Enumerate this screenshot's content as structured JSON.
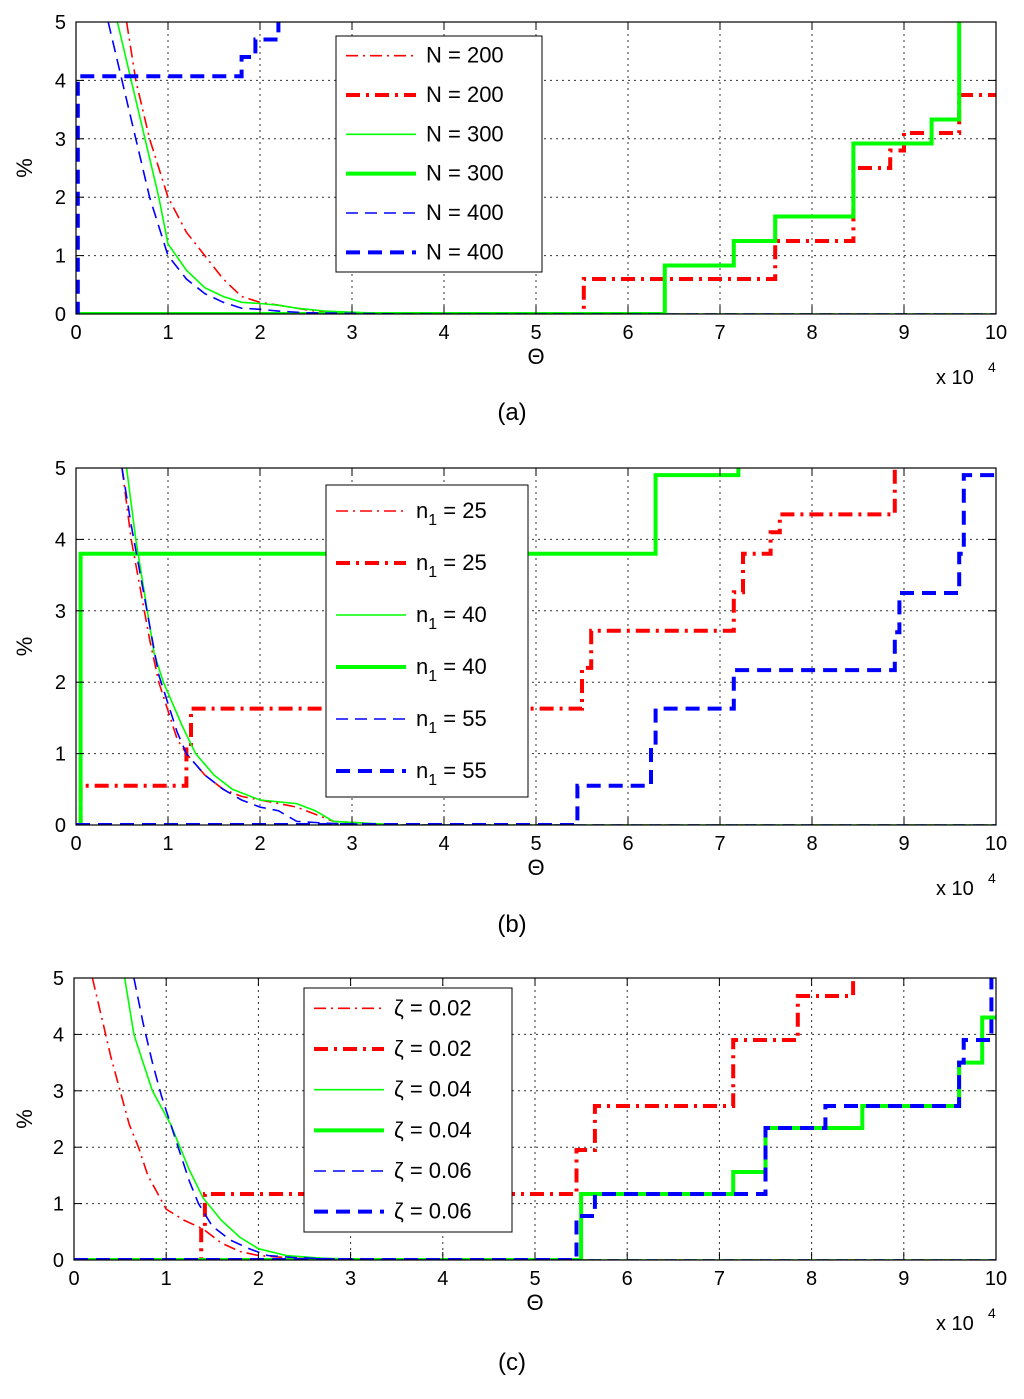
{
  "chart_data": [
    {
      "panel": "(a)",
      "type": "line",
      "xlabel": "Θ",
      "ylabel": "%",
      "x_multiplier": "x 10",
      "x_multiplier_exp": "4",
      "xlim": [
        0,
        10
      ],
      "ylim": [
        0,
        5
      ],
      "xticks": [
        "0",
        "1",
        "2",
        "3",
        "4",
        "5",
        "6",
        "7",
        "8",
        "9",
        "10"
      ],
      "yticks": [
        "0",
        "1",
        "2",
        "3",
        "4",
        "5"
      ],
      "grid": true,
      "legend_position": "top-center",
      "legend": [
        {
          "main": "N = 200",
          "sub": ""
        },
        {
          "main": "N = 200",
          "sub": ""
        },
        {
          "main": "N = 300",
          "sub": ""
        },
        {
          "main": "N = 300",
          "sub": ""
        },
        {
          "main": "N = 400",
          "sub": ""
        },
        {
          "main": "N = 400",
          "sub": ""
        }
      ],
      "series": [
        {
          "name": "N = 200",
          "color": "#ff0000",
          "style": "dashdot",
          "weight": "thin",
          "x": [
            0.55,
            0.65,
            0.8,
            1.0,
            1.2,
            1.4,
            1.6,
            1.8,
            2.0,
            2.2,
            2.4,
            2.6,
            2.8,
            3.5,
            10
          ],
          "y": [
            5,
            4.0,
            3.0,
            2.0,
            1.4,
            1.0,
            0.6,
            0.3,
            0.2,
            0.15,
            0.1,
            0.05,
            0.02,
            0,
            0
          ]
        },
        {
          "name": "N = 200",
          "color": "#ff0000",
          "style": "dashdot",
          "weight": "thick",
          "x": [
            0,
            5.52,
            5.52,
            7.6,
            7.6,
            8.45,
            8.45,
            8.85,
            8.85,
            9.0,
            9.0,
            9.6,
            9.6,
            10
          ],
          "y": [
            0,
            0,
            0.6,
            0.6,
            1.25,
            1.25,
            2.5,
            2.5,
            2.8,
            2.8,
            3.1,
            3.1,
            3.75,
            3.75
          ]
        },
        {
          "name": "N = 300",
          "color": "#00ff00",
          "style": "solid",
          "weight": "thin",
          "x": [
            0.45,
            0.6,
            0.75,
            0.9,
            1.0,
            1.2,
            1.4,
            1.6,
            1.8,
            2.0,
            2.2,
            2.4,
            2.7,
            3.5,
            10
          ],
          "y": [
            5,
            4.0,
            3.0,
            2.0,
            1.2,
            0.75,
            0.45,
            0.3,
            0.2,
            0.18,
            0.15,
            0.1,
            0.05,
            0,
            0
          ]
        },
        {
          "name": "N = 300",
          "color": "#00ff00",
          "style": "solid",
          "weight": "thick",
          "x": [
            0,
            6.4,
            6.4,
            7.15,
            7.15,
            7.6,
            7.6,
            8.45,
            8.45,
            9.3,
            9.3,
            9.6,
            9.6
          ],
          "y": [
            0,
            0,
            0.83,
            0.83,
            1.25,
            1.25,
            1.67,
            1.67,
            2.92,
            2.92,
            3.33,
            3.33,
            5
          ]
        },
        {
          "name": "N = 400",
          "color": "#0000ff",
          "style": "dashed",
          "weight": "thin",
          "x": [
            0.35,
            0.5,
            0.65,
            0.8,
            1.0,
            1.2,
            1.4,
            1.6,
            1.8,
            2.0,
            2.2,
            2.5,
            3.5,
            10
          ],
          "y": [
            5,
            4.0,
            3.0,
            2.0,
            1.0,
            0.6,
            0.35,
            0.2,
            0.1,
            0.08,
            0.05,
            0.02,
            0,
            0
          ]
        },
        {
          "name": "N = 400",
          "color": "#0000ff",
          "style": "dashed",
          "weight": "thick",
          "x": [
            0,
            0.02,
            0.02,
            1.8,
            1.8,
            1.95,
            1.95,
            2.2,
            2.2
          ],
          "y": [
            0,
            0,
            4.07,
            4.07,
            4.4,
            4.4,
            4.7,
            4.7,
            5
          ]
        }
      ]
    },
    {
      "panel": "(b)",
      "type": "line",
      "xlabel": "Θ",
      "ylabel": "%",
      "x_multiplier": "x 10",
      "x_multiplier_exp": "4",
      "xlim": [
        0,
        10
      ],
      "ylim": [
        0,
        5
      ],
      "xticks": [
        "0",
        "1",
        "2",
        "3",
        "4",
        "5",
        "6",
        "7",
        "8",
        "9",
        "10"
      ],
      "yticks": [
        "0",
        "1",
        "2",
        "3",
        "4",
        "5"
      ],
      "grid": true,
      "legend_position": "top-center",
      "legend": [
        {
          "main": "n",
          "sub": "1",
          "rest": " = 25"
        },
        {
          "main": "n",
          "sub": "1",
          "rest": " = 25"
        },
        {
          "main": "n",
          "sub": "1",
          "rest": " = 40"
        },
        {
          "main": "n",
          "sub": "1",
          "rest": " = 40"
        },
        {
          "main": "n",
          "sub": "1",
          "rest": " = 55"
        },
        {
          "main": "n",
          "sub": "1",
          "rest": " = 55"
        }
      ],
      "series": [
        {
          "name": "n1 = 25",
          "color": "#ff0000",
          "style": "dashdot",
          "weight": "thin",
          "x": [
            0.5,
            0.6,
            0.7,
            0.8,
            0.9,
            1.0,
            1.1,
            1.2,
            1.4,
            1.6,
            1.8,
            2.0,
            2.4,
            2.6,
            2.8,
            3.5,
            10
          ],
          "y": [
            5,
            4.0,
            3.3,
            2.6,
            2.0,
            1.6,
            1.2,
            1.0,
            0.7,
            0.5,
            0.4,
            0.35,
            0.25,
            0.15,
            0.05,
            0,
            0
          ]
        },
        {
          "name": "n1 = 25",
          "color": "#ff0000",
          "style": "dashdot",
          "weight": "thick",
          "x": [
            0,
            0.05,
            0.05,
            1.2,
            1.2,
            1.25,
            1.25,
            5.5,
            5.5,
            5.6,
            5.6,
            7.15,
            7.15,
            7.25,
            7.25,
            7.55,
            7.55,
            7.65,
            7.65,
            8.9,
            8.9
          ],
          "y": [
            0,
            0,
            0.55,
            0.55,
            1.1,
            1.1,
            1.63,
            1.63,
            2.2,
            2.2,
            2.72,
            2.72,
            3.26,
            3.26,
            3.8,
            3.8,
            4.1,
            4.1,
            4.35,
            4.35,
            5
          ]
        },
        {
          "name": "n1 = 40",
          "color": "#00ff00",
          "style": "solid",
          "weight": "thin",
          "x": [
            0.55,
            0.65,
            0.75,
            0.85,
            0.95,
            1.05,
            1.15,
            1.3,
            1.5,
            1.7,
            2.0,
            2.4,
            2.6,
            2.8,
            3.5,
            10
          ],
          "y": [
            5,
            4.0,
            3.2,
            2.4,
            2.0,
            1.7,
            1.4,
            1.0,
            0.7,
            0.5,
            0.35,
            0.3,
            0.2,
            0.05,
            0,
            0
          ]
        },
        {
          "name": "n1 = 40",
          "color": "#00ff00",
          "style": "solid",
          "weight": "thick",
          "x": [
            0,
            0.05,
            0.05,
            6.3,
            6.3,
            7.2,
            7.2
          ],
          "y": [
            0,
            0,
            3.8,
            3.8,
            4.9,
            4.9,
            5
          ]
        },
        {
          "name": "n1 = 55",
          "color": "#0000ff",
          "style": "dashed",
          "weight": "thin",
          "x": [
            0.5,
            0.6,
            0.7,
            0.8,
            0.9,
            1.0,
            1.1,
            1.2,
            1.4,
            1.6,
            1.8,
            2.0,
            2.2,
            2.4,
            2.8,
            3.5,
            10
          ],
          "y": [
            5,
            4.2,
            3.5,
            2.8,
            2.1,
            1.7,
            1.3,
            1.0,
            0.7,
            0.5,
            0.35,
            0.25,
            0.2,
            0.05,
            0.02,
            0,
            0
          ]
        },
        {
          "name": "n1 = 55",
          "color": "#0000ff",
          "style": "dashed",
          "weight": "thick",
          "x": [
            0,
            5.45,
            5.45,
            6.25,
            6.25,
            6.3,
            6.3,
            7.15,
            7.15,
            7.2,
            7.2,
            8.9,
            8.9,
            8.95,
            8.95,
            9.6,
            9.6,
            9.65,
            9.65,
            10
          ],
          "y": [
            0,
            0,
            0.55,
            0.55,
            1.1,
            1.1,
            1.63,
            1.63,
            2.17,
            2.17,
            2.17,
            2.17,
            2.7,
            2.7,
            3.25,
            3.25,
            3.8,
            3.8,
            4.9,
            4.9
          ]
        }
      ]
    },
    {
      "panel": "(c)",
      "type": "line",
      "xlabel": "Θ",
      "ylabel": "%",
      "x_multiplier": "x 10",
      "x_multiplier_exp": "4",
      "xlim": [
        0,
        10
      ],
      "ylim": [
        0,
        5
      ],
      "xticks": [
        "0",
        "1",
        "2",
        "3",
        "4",
        "5",
        "6",
        "7",
        "8",
        "9",
        "10"
      ],
      "yticks": [
        "0",
        "1",
        "2",
        "3",
        "4",
        "5"
      ],
      "grid": true,
      "legend_position": "top-center",
      "legend": [
        {
          "main": "ζ = 0.02",
          "sub": ""
        },
        {
          "main": "ζ = 0.02",
          "sub": ""
        },
        {
          "main": "ζ = 0.04",
          "sub": ""
        },
        {
          "main": "ζ = 0.04",
          "sub": ""
        },
        {
          "main": "ζ = 0.06",
          "sub": ""
        },
        {
          "main": "ζ = 0.06",
          "sub": ""
        }
      ],
      "series": [
        {
          "name": "ζ = 0.02",
          "color": "#ff0000",
          "style": "dashdot",
          "weight": "thin",
          "x": [
            0.2,
            0.3,
            0.4,
            0.5,
            0.6,
            0.7,
            0.8,
            0.9,
            1.0,
            1.2,
            1.4,
            1.6,
            1.8,
            2.0,
            2.4,
            3.0,
            10
          ],
          "y": [
            5,
            4.3,
            3.6,
            3.0,
            2.4,
            2.0,
            1.5,
            1.2,
            0.9,
            0.7,
            0.55,
            0.3,
            0.15,
            0.08,
            0.03,
            0,
            0
          ]
        },
        {
          "name": "ζ = 0.02",
          "color": "#ff0000",
          "style": "dashdot",
          "weight": "thick",
          "x": [
            0,
            1.38,
            1.38,
            1.42,
            1.42,
            5.45,
            5.45,
            5.65,
            5.65,
            7.15,
            7.15,
            7.85,
            7.85,
            8.45,
            8.45
          ],
          "y": [
            0,
            0,
            0.6,
            0.6,
            1.17,
            1.17,
            1.95,
            1.95,
            2.73,
            2.73,
            3.9,
            3.9,
            4.68,
            4.68,
            5
          ]
        },
        {
          "name": "ζ = 0.04",
          "color": "#00ff00",
          "style": "solid",
          "weight": "thin",
          "x": [
            0.55,
            0.65,
            0.75,
            0.85,
            0.95,
            1.05,
            1.15,
            1.25,
            1.4,
            1.6,
            1.8,
            2.0,
            2.3,
            2.7,
            3.5,
            10
          ],
          "y": [
            5,
            4.0,
            3.5,
            3.0,
            2.7,
            2.4,
            2.0,
            1.6,
            1.1,
            0.7,
            0.4,
            0.2,
            0.08,
            0.03,
            0,
            0
          ]
        },
        {
          "name": "ζ = 0.04",
          "color": "#00ff00",
          "style": "solid",
          "weight": "thick",
          "x": [
            0,
            5.5,
            5.5,
            5.65,
            5.65,
            7.15,
            7.15,
            7.5,
            7.5,
            8.55,
            8.55,
            9.6,
            9.6,
            9.85,
            9.85,
            10
          ],
          "y": [
            0,
            0,
            1.17,
            1.17,
            1.17,
            1.17,
            1.56,
            1.56,
            2.34,
            2.34,
            2.73,
            2.73,
            3.5,
            3.5,
            4.3,
            4.3
          ]
        },
        {
          "name": "ζ = 0.06",
          "color": "#0000ff",
          "style": "dashed",
          "weight": "thin",
          "x": [
            0.65,
            0.75,
            0.85,
            0.95,
            1.05,
            1.15,
            1.25,
            1.35,
            1.5,
            1.7,
            1.9,
            2.1,
            2.4,
            2.8,
            3.5,
            10
          ],
          "y": [
            5,
            4.2,
            3.5,
            2.9,
            2.4,
            1.9,
            1.4,
            1.0,
            0.6,
            0.35,
            0.2,
            0.08,
            0.04,
            0.02,
            0,
            0
          ]
        },
        {
          "name": "ζ = 0.06",
          "color": "#0000ff",
          "style": "dashed",
          "weight": "thick",
          "x": [
            0,
            5.45,
            5.45,
            5.55,
            5.55,
            5.65,
            5.65,
            7.5,
            7.5,
            8.15,
            8.15,
            9.6,
            9.6,
            9.65,
            9.65,
            9.95,
            9.95
          ],
          "y": [
            0,
            0,
            0.78,
            0.78,
            0.78,
            0.78,
            1.17,
            1.17,
            2.34,
            2.34,
            2.73,
            2.73,
            3.5,
            3.5,
            3.9,
            3.9,
            5
          ]
        }
      ]
    }
  ]
}
